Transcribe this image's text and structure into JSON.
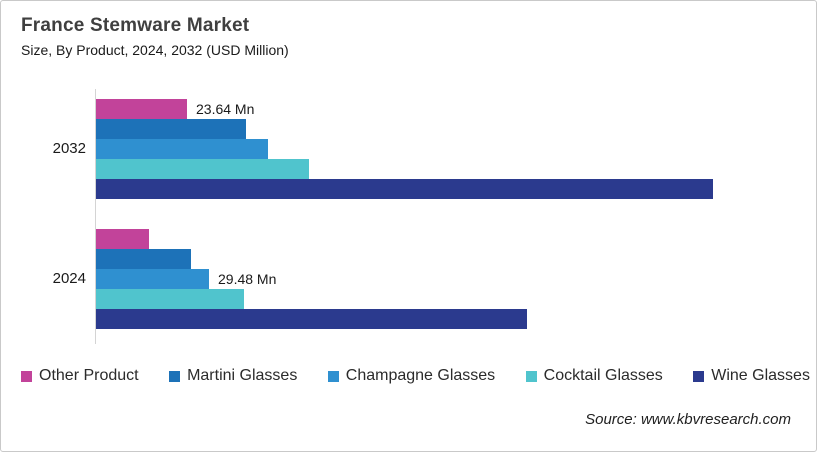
{
  "header": {
    "title": "France Stemware Market",
    "subtitle": "Size, By Product, 2024, 2032 (USD Million)"
  },
  "source": "Source: www.kbvresearch.com",
  "colors": {
    "border": "#c9c9c9",
    "axis_line": "#d4d4d4",
    "title_text": "#3f3f3f",
    "body_text": "#1a1a1a",
    "other_product": "#c2439a",
    "martini_glasses": "#1d72b8",
    "champagne_glasses": "#2f90d0",
    "cocktail_glasses": "#50c4cd",
    "wine_glasses": "#2b3a8e"
  },
  "chart_data": {
    "type": "bar",
    "orientation": "horizontal",
    "title": "France Stemware Market",
    "subtitle": "Size, By Product, 2024, 2032 (USD Million)",
    "unit": "USD Million",
    "categories": [
      "2032",
      "2024"
    ],
    "series": [
      {
        "name": "Other Product",
        "color": "#c2439a",
        "values": [
          23.64,
          13.8
        ]
      },
      {
        "name": "Martini Glasses",
        "color": "#1d72b8",
        "values": [
          39.0,
          24.7
        ]
      },
      {
        "name": "Champagne Glasses",
        "color": "#2f90d0",
        "values": [
          44.7,
          29.48
        ]
      },
      {
        "name": "Cocktail Glasses",
        "color": "#50c4cd",
        "values": [
          55.6,
          38.5
        ]
      },
      {
        "name": "Wine Glasses",
        "color": "#2b3a8e",
        "values": [
          160.6,
          112.3
        ]
      }
    ],
    "data_labels": [
      {
        "category": "2032",
        "series": "Other Product",
        "text": "23.64 Mn"
      },
      {
        "category": "2024",
        "series": "Champagne Glasses",
        "text": "29.48 Mn"
      }
    ],
    "xlim": [
      0,
      187
    ],
    "grid": false,
    "legend_position": "bottom"
  }
}
